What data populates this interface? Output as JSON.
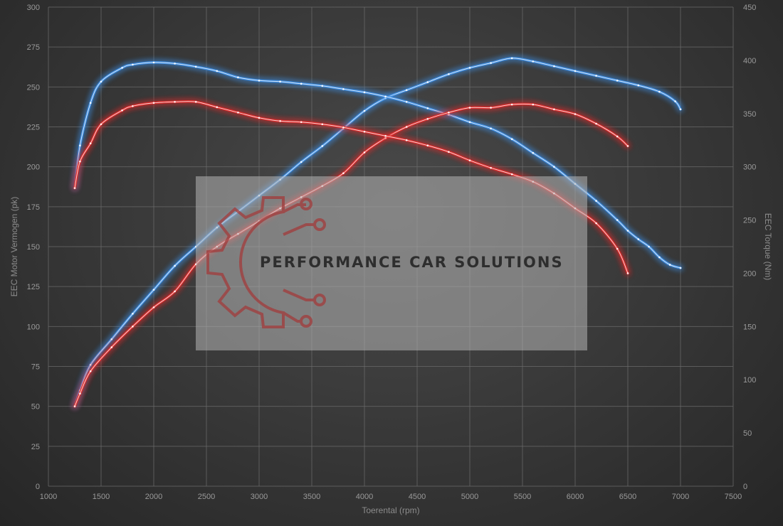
{
  "chart_data": {
    "type": "line",
    "xlabel": "Toerental (rpm)",
    "ylabel_left": "EEC Motor Vermogen (pk)",
    "ylabel_right": "EEC Torque (Nm)",
    "xlim": [
      1000,
      7500
    ],
    "ylim_left": [
      0,
      300
    ],
    "ylim_right": [
      0,
      450
    ],
    "x_ticks": [
      1000,
      1500,
      2000,
      2500,
      3000,
      3500,
      4000,
      4500,
      5000,
      5500,
      6000,
      6500,
      7000,
      7500
    ],
    "y_left_ticks": [
      0,
      25,
      50,
      75,
      100,
      125,
      150,
      175,
      200,
      225,
      250,
      275,
      300
    ],
    "y_right_ticks": [
      0,
      50,
      100,
      150,
      200,
      250,
      300,
      350,
      400,
      450
    ],
    "grid": true,
    "legend": "none",
    "series": [
      {
        "id": "tuned_power",
        "axis": "left",
        "color": "#3d8fe6",
        "points": [
          [
            1250,
            50
          ],
          [
            1300,
            60
          ],
          [
            1400,
            76
          ],
          [
            1600,
            92
          ],
          [
            1800,
            108
          ],
          [
            2000,
            123
          ],
          [
            2200,
            138
          ],
          [
            2400,
            150
          ],
          [
            2600,
            162
          ],
          [
            2800,
            172
          ],
          [
            3000,
            182
          ],
          [
            3200,
            192
          ],
          [
            3400,
            203
          ],
          [
            3600,
            213
          ],
          [
            3800,
            224
          ],
          [
            4000,
            235
          ],
          [
            4200,
            243
          ],
          [
            4400,
            248
          ],
          [
            4600,
            253
          ],
          [
            4800,
            258
          ],
          [
            5000,
            262
          ],
          [
            5200,
            265
          ],
          [
            5400,
            268
          ],
          [
            5600,
            266
          ],
          [
            5800,
            263
          ],
          [
            6000,
            260
          ],
          [
            6200,
            257
          ],
          [
            6400,
            254
          ],
          [
            6600,
            251
          ],
          [
            6800,
            247
          ],
          [
            6950,
            241
          ],
          [
            7000,
            236
          ]
        ]
      },
      {
        "id": "tuned_torque",
        "axis": "right",
        "color": "#3d8fe6",
        "points": [
          [
            1250,
            280
          ],
          [
            1300,
            320
          ],
          [
            1400,
            360
          ],
          [
            1500,
            380
          ],
          [
            1700,
            393
          ],
          [
            1800,
            396
          ],
          [
            2000,
            398
          ],
          [
            2200,
            397
          ],
          [
            2400,
            394
          ],
          [
            2600,
            390
          ],
          [
            2800,
            384
          ],
          [
            3000,
            381
          ],
          [
            3200,
            380
          ],
          [
            3400,
            378
          ],
          [
            3600,
            376
          ],
          [
            3800,
            373
          ],
          [
            4000,
            370
          ],
          [
            4200,
            366
          ],
          [
            4400,
            361
          ],
          [
            4600,
            355
          ],
          [
            4800,
            349
          ],
          [
            5000,
            342
          ],
          [
            5200,
            336
          ],
          [
            5400,
            326
          ],
          [
            5600,
            313
          ],
          [
            5800,
            300
          ],
          [
            6000,
            284
          ],
          [
            6200,
            268
          ],
          [
            6400,
            250
          ],
          [
            6500,
            240
          ],
          [
            6600,
            232
          ],
          [
            6700,
            225
          ],
          [
            6800,
            215
          ],
          [
            6900,
            208
          ],
          [
            7000,
            205
          ]
        ]
      },
      {
        "id": "stock_power",
        "axis": "left",
        "color": "#e02a2a",
        "points": [
          [
            1250,
            50
          ],
          [
            1300,
            58
          ],
          [
            1400,
            72
          ],
          [
            1600,
            87
          ],
          [
            1800,
            100
          ],
          [
            2000,
            112
          ],
          [
            2200,
            122
          ],
          [
            2400,
            139
          ],
          [
            2600,
            150
          ],
          [
            2800,
            158
          ],
          [
            3000,
            166
          ],
          [
            3200,
            174
          ],
          [
            3400,
            181
          ],
          [
            3600,
            188
          ],
          [
            3800,
            196
          ],
          [
            4000,
            209
          ],
          [
            4200,
            218
          ],
          [
            4400,
            225
          ],
          [
            4600,
            230
          ],
          [
            4800,
            234
          ],
          [
            5000,
            237
          ],
          [
            5200,
            237
          ],
          [
            5400,
            239
          ],
          [
            5600,
            239
          ],
          [
            5800,
            236
          ],
          [
            6000,
            233
          ],
          [
            6200,
            227
          ],
          [
            6400,
            219
          ],
          [
            6500,
            213
          ]
        ]
      },
      {
        "id": "stock_torque",
        "axis": "right",
        "color": "#e02a2a",
        "points": [
          [
            1250,
            280
          ],
          [
            1300,
            305
          ],
          [
            1400,
            322
          ],
          [
            1500,
            340
          ],
          [
            1700,
            353
          ],
          [
            1800,
            357
          ],
          [
            2000,
            360
          ],
          [
            2200,
            361
          ],
          [
            2400,
            361
          ],
          [
            2600,
            356
          ],
          [
            2800,
            351
          ],
          [
            3000,
            346
          ],
          [
            3200,
            343
          ],
          [
            3400,
            342
          ],
          [
            3600,
            340
          ],
          [
            3800,
            337
          ],
          [
            4000,
            333
          ],
          [
            4200,
            329
          ],
          [
            4400,
            325
          ],
          [
            4600,
            320
          ],
          [
            4800,
            314
          ],
          [
            5000,
            306
          ],
          [
            5200,
            299
          ],
          [
            5400,
            293
          ],
          [
            5600,
            286
          ],
          [
            5800,
            275
          ],
          [
            6000,
            261
          ],
          [
            6200,
            247
          ],
          [
            6400,
            223
          ],
          [
            6500,
            200
          ]
        ]
      }
    ]
  },
  "watermark": {
    "text": "PERFORMANCE CAR SOLUTIONS",
    "icon": "gear-circuit-logo"
  }
}
